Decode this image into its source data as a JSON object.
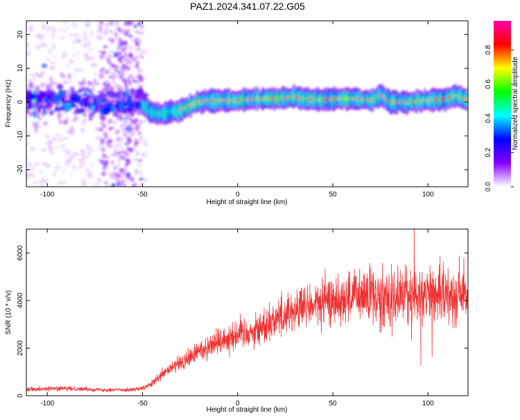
{
  "title": "PAZ1.2024.341.07.22.G05",
  "chart_data": [
    {
      "type": "heatmap",
      "xlabel": "Height of straight line (km)",
      "ylabel": "Frequency (Hz)",
      "xlim": [
        -111,
        121
      ],
      "ylim": [
        -25,
        24
      ],
      "xticks": [
        -100,
        -50,
        0,
        50,
        100
      ],
      "yticks": [
        -20,
        -10,
        0,
        10,
        20
      ],
      "colorbar": {
        "label": "Normalized spectral amplitude",
        "range": [
          0.0,
          0.97
        ],
        "ticks": [
          0.0,
          0.2,
          0.4,
          0.6,
          0.8
        ],
        "colors": [
          "#ffffff",
          "#8800ff",
          "#0000ff",
          "#00ffff",
          "#00ff00",
          "#ffff00",
          "#ff0000",
          "#ff00aa"
        ]
      },
      "ridge_x": [
        -111,
        -100,
        -90,
        -80,
        -70,
        -60,
        -50,
        -45,
        -40,
        -35,
        -30,
        -25,
        -20,
        -10,
        0,
        10,
        20,
        30,
        40,
        50,
        60,
        70,
        75,
        80,
        90,
        100,
        110,
        115,
        121
      ],
      "ridge_y": [
        1.5,
        2,
        0,
        0,
        -2,
        -1,
        -1,
        -3,
        -3.5,
        -3,
        -2.5,
        -1,
        0,
        0.5,
        0.5,
        1,
        1,
        1.5,
        0.5,
        1,
        1,
        0.5,
        2,
        0,
        0,
        0.5,
        1,
        2,
        0.5
      ]
    },
    {
      "type": "line",
      "xlabel": "Height of straight line (km)",
      "ylabel": "SNR (10 * v/v)",
      "xlim": [
        -111,
        121
      ],
      "ylim": [
        0,
        7000
      ],
      "xticks": [
        -100,
        -50,
        0,
        50,
        100
      ],
      "yticks": [
        0,
        2000,
        4000,
        6000
      ],
      "color": "#ee3333",
      "envelope": {
        "x": [
          -111,
          -100,
          -90,
          -80,
          -70,
          -60,
          -55,
          -50,
          -45,
          -40,
          -35,
          -30,
          -25,
          -20,
          -10,
          0,
          10,
          20,
          30,
          40,
          50,
          60,
          70,
          80,
          90,
          100,
          110,
          121
        ],
        "y": [
          280,
          300,
          300,
          280,
          250,
          250,
          260,
          300,
          500,
          850,
          1150,
          1350,
          1600,
          1900,
          2300,
          2600,
          2750,
          3250,
          3600,
          3800,
          4000,
          4150,
          4200,
          4250,
          4200,
          4250,
          4250,
          4300
        ]
      }
    }
  ]
}
